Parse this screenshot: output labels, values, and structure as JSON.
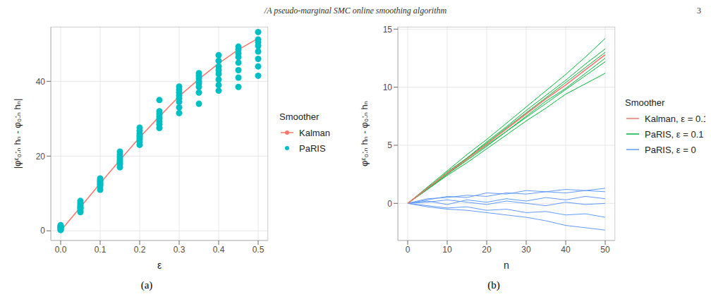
{
  "page_header": "/A pseudo-marginal SMC online smoothing algorithm",
  "page_number": 3,
  "chart_data": [
    {
      "type": "scatter",
      "title": "(a)",
      "x_label": "ε",
      "y_label": "|φᵋ₀:ₙ hₙ - φ₀:ₙ hₙ|",
      "legend_title": "Smoother",
      "legend": "right",
      "grid": true,
      "xlim": [
        -0.025,
        0.525
      ],
      "ylim": [
        -2.6,
        54.6
      ],
      "xticks": [
        {
          "value": 0,
          "label": "0.0"
        },
        0.1,
        0.2,
        0.3,
        0.4,
        0.5
      ],
      "yticks": [
        0,
        20,
        40
      ],
      "series": [
        {
          "name": "Kalman",
          "type": "line",
          "color": "#F8766D",
          "marker": "circle",
          "x": [
            0,
            0.05,
            0.1,
            0.15,
            0.2,
            0.25,
            0.3,
            0.35,
            0.4,
            0.45,
            0.5
          ],
          "values": [
            0,
            6.3,
            12.7,
            18.9,
            25,
            30.6,
            36,
            40.6,
            44.8,
            48.5,
            51.5
          ]
        },
        {
          "name": "PaRIS",
          "type": "scatter",
          "color": "#00BFC4",
          "marker": "circle",
          "x": [
            0,
            0,
            0,
            0,
            0,
            0,
            0,
            0,
            0.05,
            0.05,
            0.05,
            0.05,
            0.05,
            0.05,
            0.05,
            0.05,
            0.1,
            0.1,
            0.1,
            0.1,
            0.1,
            0.1,
            0.1,
            0.1,
            0.15,
            0.15,
            0.15,
            0.15,
            0.15,
            0.15,
            0.15,
            0.15,
            0.2,
            0.2,
            0.2,
            0.2,
            0.2,
            0.2,
            0.2,
            0.2,
            0.25,
            0.25,
            0.25,
            0.25,
            0.25,
            0.25,
            0.25,
            0.25,
            0.3,
            0.3,
            0.3,
            0.3,
            0.3,
            0.3,
            0.3,
            0.3,
            0.35,
            0.35,
            0.35,
            0.35,
            0.35,
            0.35,
            0.35,
            0.35,
            0.4,
            0.4,
            0.4,
            0.4,
            0.4,
            0.4,
            0.4,
            0.4,
            0.45,
            0.45,
            0.45,
            0.45,
            0.45,
            0.45,
            0.45,
            0.45,
            0.5,
            0.5,
            0.5,
            0.5,
            0.5,
            0.5,
            0.5,
            0.5
          ],
          "values": [
            0.2,
            0.5,
            0.8,
            1.2,
            1.5,
            0.3,
            0.9,
            1.1,
            5,
            5.5,
            6,
            6.5,
            7,
            7.5,
            8,
            6.2,
            11,
            11.8,
            12.3,
            12.8,
            13.2,
            13.6,
            14,
            12.5,
            17,
            17.8,
            18.3,
            18.8,
            19.3,
            19.8,
            20.5,
            21.2,
            23,
            23.8,
            24.5,
            25,
            25.5,
            26,
            26.8,
            27.6,
            27.5,
            28.5,
            29.2,
            30,
            30.6,
            31.3,
            32,
            35,
            31.5,
            33,
            34.5,
            35.5,
            36.2,
            37,
            37.8,
            38.6,
            34,
            37,
            38.5,
            39.5,
            40,
            40.8,
            41.5,
            42.2,
            37.5,
            39,
            40.5,
            42,
            43,
            44,
            45.5,
            47,
            38.5,
            41,
            43,
            45,
            46.5,
            47.5,
            48.5,
            49.3,
            41.5,
            44,
            46,
            48,
            49.5,
            50.5,
            51.2,
            53.2
          ]
        }
      ]
    },
    {
      "type": "line",
      "title": "(b)",
      "x_label": "n",
      "y_label": "φᵋ₀:ₙ hₙ - φ₀:ₙ hₙ",
      "legend_title": "Smoother",
      "legend": "right",
      "grid": true,
      "xlim": [
        -2.5,
        52.5
      ],
      "ylim": [
        -3.2,
        15.2
      ],
      "xticks": [
        0,
        10,
        20,
        30,
        40,
        50
      ],
      "yticks": [
        0,
        5,
        10,
        15
      ],
      "x": [
        0,
        5,
        10,
        15,
        20,
        25,
        30,
        35,
        40,
        45,
        50
      ],
      "series": [
        {
          "name": "Kalman, ε = 0.1",
          "color": "#F8766D",
          "runs": [
            [
              0,
              1.3,
              2.6,
              3.8,
              5.1,
              6.4,
              7.7,
              9,
              10.2,
              11.5,
              12.8
            ]
          ]
        },
        {
          "name": "PaRIS, ε = 0.1",
          "color": "#00BA38",
          "runs": [
            [
              0,
              1.4,
              2.8,
              4.2,
              5.5,
              6.9,
              8.3,
              9.7,
              11.1,
              12.6,
              14.2
            ],
            [
              0,
              1.2,
              2.4,
              3.5,
              4.7,
              5.9,
              7.1,
              8.2,
              9.4,
              10.3,
              11.2
            ],
            [
              0,
              1.3,
              2.7,
              3.9,
              5.3,
              6.6,
              8,
              9.3,
              10.6,
              12,
              13.3
            ],
            [
              0,
              1.2,
              2.5,
              3.7,
              4.9,
              6.2,
              7.4,
              8.6,
              9.8,
              11,
              12.2
            ],
            [
              0,
              1.35,
              2.6,
              3.9,
              5.2,
              6.5,
              7.8,
              9.1,
              10.4,
              11.7,
              13
            ],
            [
              0,
              1.25,
              2.5,
              3.8,
              5,
              6.2,
              7.5,
              8.8,
              9.9,
              11.2,
              12.5
            ]
          ]
        },
        {
          "name": "PaRIS, ε = 0",
          "color": "#619CFF",
          "runs": [
            [
              0,
              0.3,
              0.6,
              0.5,
              0.9,
              0.8,
              1.1,
              1,
              1.2,
              1.1,
              1.3
            ],
            [
              0,
              -0.3,
              -0.5,
              -0.6,
              -0.8,
              -1,
              -1.2,
              -1.5,
              -1.9,
              -2.1,
              -2.3
            ],
            [
              0,
              0.2,
              -0.1,
              0.3,
              0.1,
              0.4,
              0.2,
              0.5,
              0.3,
              0.6,
              0.4
            ],
            [
              0,
              -0.2,
              -0.4,
              -0.3,
              -0.6,
              -0.5,
              -0.8,
              -0.7,
              -1,
              -0.9,
              -1.2
            ],
            [
              0,
              0.1,
              0.3,
              0.1,
              -0.1,
              0.2,
              0,
              -0.2,
              0.1,
              -0.1,
              0
            ],
            [
              0,
              0.4,
              0.5,
              0.7,
              0.6,
              0.9,
              0.8,
              1,
              0.9,
              1.1,
              1
            ]
          ]
        }
      ]
    }
  ]
}
